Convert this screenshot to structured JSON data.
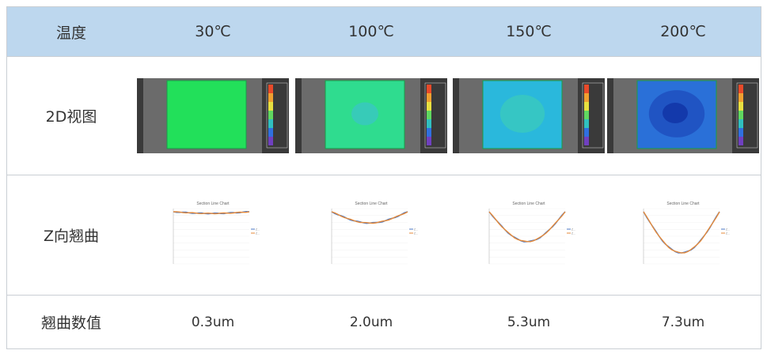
{
  "header": {
    "label": "温度",
    "temps": [
      "30℃",
      "100℃",
      "150℃",
      "200℃"
    ]
  },
  "rows": {
    "view2d": "2D视图",
    "zwarp": "Z向翘曲",
    "warpval": "翘曲数值"
  },
  "heatmaps": [
    {
      "fill": "#22e05a",
      "level": 0.05
    },
    {
      "fill": "#2fdc8f",
      "level": 0.25
    },
    {
      "fill": "#2ab8dc",
      "level": 0.65
    },
    {
      "fill": "#2a70d8",
      "level": 0.9
    }
  ],
  "colors": {
    "series_a": "#4e79c4",
    "series_b": "#e58a3a",
    "header_bg": "#bdd7ee"
  },
  "charts": [
    {
      "title": "Section Line Chart",
      "legend": [
        "Z...",
        "Z..."
      ],
      "warp_um": 0.3
    },
    {
      "title": "Section Line Chart",
      "legend": [
        "Z...",
        "Z..."
      ],
      "warp_um": 2.0
    },
    {
      "title": "Section Line Chart",
      "legend": [
        "Z...",
        "Z..."
      ],
      "warp_um": 5.3
    },
    {
      "title": "Section Line Chart",
      "legend": [
        "Z...",
        "Z..."
      ],
      "warp_um": 7.3
    }
  ],
  "values": [
    "0.3um",
    "2.0um",
    "5.3um",
    "7.3um"
  ]
}
